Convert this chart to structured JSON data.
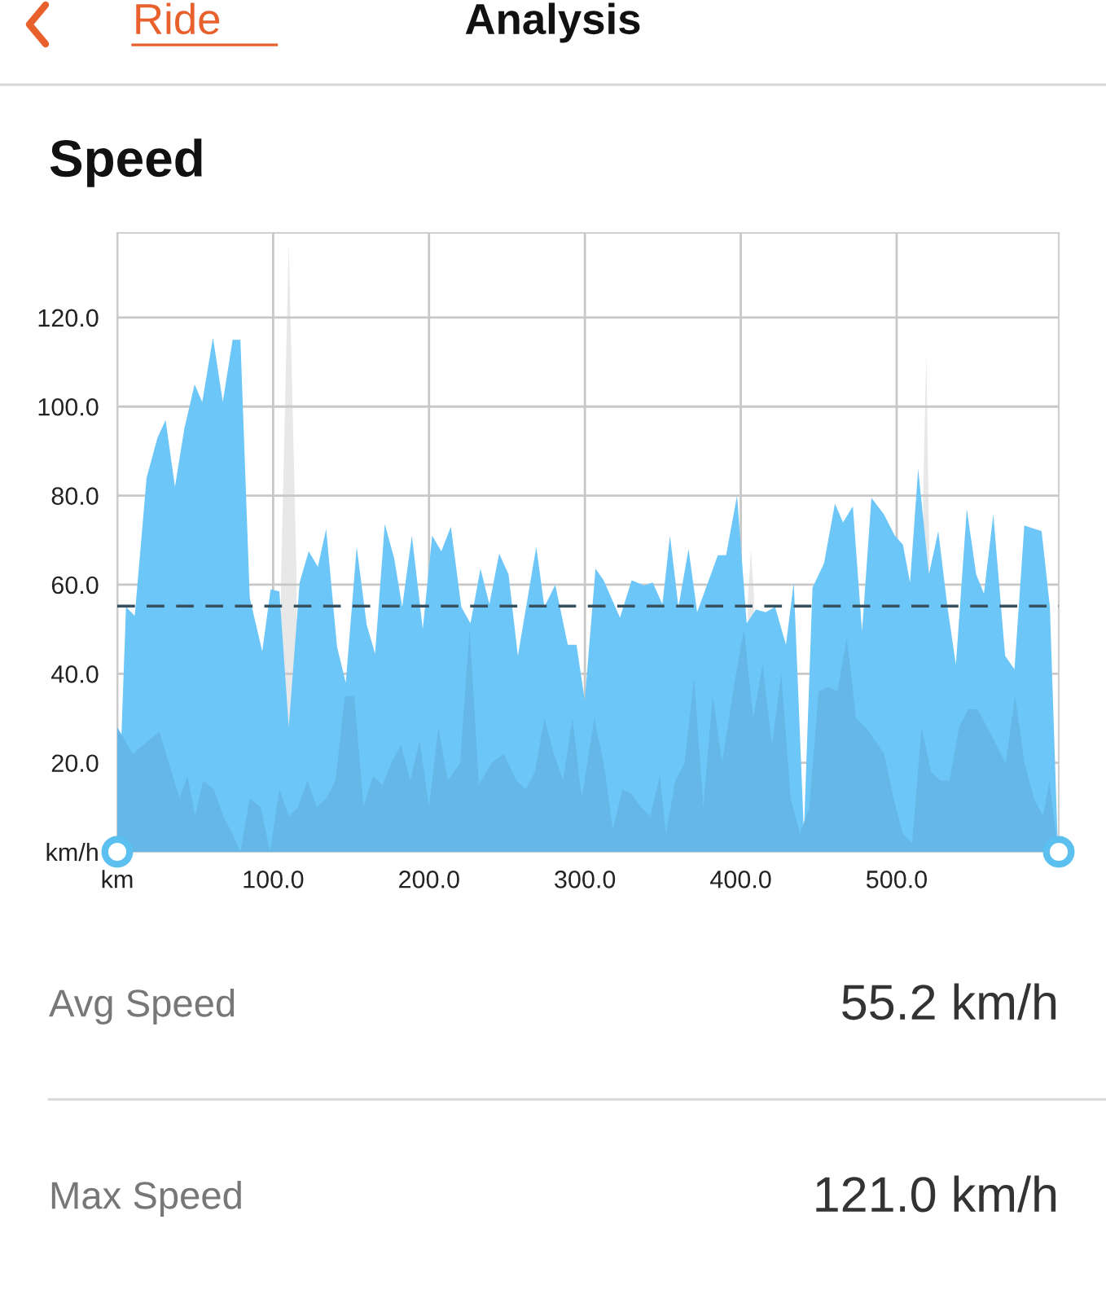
{
  "chart_data": {
    "type": "area",
    "title": "Speed",
    "annotations": [
      "Ride",
      "Analysis",
      "Avg Speed",
      "55.2 km/h",
      "Max Speed",
      "121.0 km/h"
    ],
    "xlim": [
      0,
      604
    ],
    "ylim": [
      0,
      139
    ],
    "xticks": [
      {
        "value": 0,
        "label": "km"
      },
      {
        "value": 100,
        "label": "100.0"
      },
      {
        "value": 200,
        "label": "200.0"
      },
      {
        "value": 300,
        "label": "300.0"
      },
      {
        "value": 400,
        "label": "400.0"
      },
      {
        "value": 500,
        "label": "500.0"
      }
    ],
    "yticks": [
      {
        "value": 0,
        "label": "km/h"
      },
      {
        "value": 20,
        "label": "20.0"
      },
      {
        "value": 40,
        "label": "40.0"
      },
      {
        "value": 60,
        "label": "60.0"
      },
      {
        "value": 80,
        "label": "80.0"
      },
      {
        "value": 100,
        "label": "100.0"
      },
      {
        "value": 120,
        "label": "120.0"
      }
    ],
    "grid": true,
    "legend": false,
    "ref_lines": [
      {
        "axis": "y",
        "value": 55.2,
        "color": "#37505f",
        "line_style": "dashed"
      }
    ],
    "series": [
      {
        "color": "#e8e8e8",
        "x": [
          105,
          110,
          115,
          116,
          404.5,
          406.5,
          408.5,
          409,
          517,
          519,
          521
        ],
        "values": [
          60,
          137,
          62,
          null,
          56,
          68,
          57,
          null,
          80,
          112,
          66
        ]
      },
      {
        "color": "#6cc6f7",
        "x": [
          0,
          5.6,
          11.2,
          18.8,
          25.8,
          31,
          37,
          43,
          49.6,
          54.5,
          61.4,
          67.7,
          74,
          79,
          85,
          93,
          98.4,
          104,
          110,
          117,
          122.8,
          128.7,
          134,
          141,
          146.6,
          153.6,
          160,
          165.4,
          171.6,
          177.6,
          182.8,
          189,
          196,
          202,
          207.9,
          214,
          220.7,
          226.6,
          233,
          238.7,
          245,
          251,
          257,
          268.8,
          274,
          281,
          289,
          294.6,
          299.9,
          306.8,
          312,
          322.5,
          330,
          338,
          343.5,
          349.7,
          354.6,
          360,
          366.5,
          372,
          385.3,
          390.6,
          397.6,
          403.8,
          409.7,
          416,
          422,
          429,
          434,
          440.5,
          446,
          453.4,
          460.4,
          465.6,
          471.9,
          477.8,
          483.8,
          491.8,
          498.8,
          504,
          508.6,
          513.8,
          520.7,
          526.7,
          532.6,
          538,
          545,
          551,
          556,
          562,
          569.6,
          575.6,
          581.9,
          593,
          598.3,
          603.5
        ],
        "values": [
          0,
          55,
          53,
          84,
          93,
          97,
          82,
          95,
          105,
          101,
          115.5,
          101,
          115,
          115,
          57,
          45,
          59,
          58.5,
          28,
          60.5,
          67.5,
          64,
          72.5,
          46,
          38,
          68.5,
          51,
          44.5,
          73.6,
          66,
          55,
          71,
          50,
          71,
          67.5,
          73,
          55,
          51.3,
          63.6,
          55.6,
          67,
          62.3,
          44,
          68.5,
          55,
          60,
          46.5,
          46.5,
          34,
          63.6,
          61,
          52.6,
          61,
          59.8,
          60.5,
          55.6,
          71,
          55,
          68,
          53.8,
          66.6,
          66.6,
          80,
          51.3,
          54.4,
          53.8,
          55,
          46.5,
          60.5,
          4.3,
          59.3,
          64.8,
          78.2,
          74,
          77.6,
          49.5,
          79.5,
          75.8,
          71,
          69,
          60.5,
          86,
          62.3,
          72,
          55,
          42,
          77,
          62.3,
          58,
          75.8,
          44,
          41,
          73.3,
          72,
          55,
          0
        ]
      },
      {
        "color": "#64b7e6",
        "x": [
          0,
          10,
          20,
          27,
          33,
          40,
          45,
          50,
          55,
          62,
          68,
          74,
          79,
          85,
          92,
          98,
          104,
          110,
          116,
          122,
          128,
          134,
          140,
          146,
          152,
          158,
          164,
          170,
          176,
          182,
          188,
          194,
          200,
          206,
          212,
          220,
          226,
          232,
          240,
          248,
          256,
          262,
          268,
          274,
          280,
          286,
          292,
          298,
          306,
          312,
          318,
          324,
          330,
          336,
          342,
          348,
          352,
          358,
          364,
          370,
          376,
          382,
          388,
          396,
          402,
          408,
          414,
          420,
          426,
          432,
          438,
          444,
          450,
          456,
          462,
          468,
          474,
          480,
          486,
          492,
          498,
          504,
          510,
          516,
          522,
          528,
          534,
          540,
          546,
          552,
          558,
          564,
          570,
          576,
          582,
          588,
          594,
          598,
          603.5
        ],
        "values": [
          28,
          22,
          25,
          27,
          20,
          12,
          17,
          8,
          16,
          14,
          8,
          4,
          0,
          12,
          10,
          0,
          14,
          8,
          10,
          16,
          10,
          12,
          16,
          35,
          35,
          10,
          17,
          15,
          20,
          24,
          16,
          25,
          10,
          28,
          16,
          20,
          50,
          15,
          20,
          22,
          16,
          14,
          18,
          30,
          22,
          16,
          30,
          12,
          30,
          20,
          5,
          14,
          13,
          10,
          8,
          17,
          4,
          16,
          20,
          39,
          10,
          35,
          20,
          38,
          50,
          30,
          42,
          24,
          40,
          12,
          4,
          10,
          36,
          37,
          36,
          48,
          30,
          28,
          25,
          22,
          12,
          4,
          2,
          28,
          18,
          16,
          16,
          28,
          32,
          32,
          28,
          24,
          20,
          35,
          20,
          12,
          8,
          16,
          0
        ]
      }
    ]
  }
}
